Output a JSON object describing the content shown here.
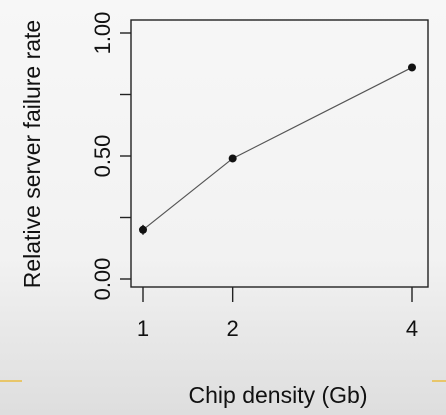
{
  "chart_data": {
    "type": "line",
    "title": "",
    "xlabel": "Chip density (Gb)",
    "ylabel": "Relative server failure rate",
    "x": [
      1,
      2,
      4
    ],
    "x_tick_labels": [
      "1",
      "2",
      "4"
    ],
    "y_ticks": [
      0,
      0.25,
      0.5,
      0.75,
      1.0
    ],
    "y_tick_labels": [
      "0.00",
      "",
      "0.50",
      "",
      "1.00"
    ],
    "xlim": [
      0.85,
      4.0
    ],
    "ylim": [
      -0.02,
      1.05
    ],
    "series": [
      {
        "values": [
          0.2,
          0.49,
          0.86
        ],
        "error_low": [
          0.18,
          0.48,
          0.85
        ],
        "error_high": [
          0.22,
          0.5,
          0.87
        ]
      }
    ],
    "grid": false,
    "colors": {
      "line": "#555555",
      "marker": "#111111",
      "axis": "#222222",
      "accent_rule": "#e8c66a"
    }
  }
}
